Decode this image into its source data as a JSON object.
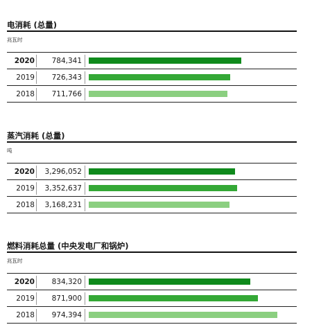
{
  "chart_data": [
    {
      "type": "bar",
      "title": "电消耗 (总量)",
      "unit": "兆瓦时",
      "categories": [
        "2020",
        "2019",
        "2018"
      ],
      "values": [
        784341,
        726343,
        711766
      ],
      "labels": [
        "784,341",
        "726,343",
        "711,766"
      ],
      "bar_colors": [
        "#0f8a1c",
        "#34a836",
        "#8bcf80"
      ],
      "xlim": [
        0,
        1070000
      ]
    },
    {
      "type": "bar",
      "title": "蒸汽消耗 (总量)",
      "unit": "吨",
      "categories": [
        "2020",
        "2019",
        "2018"
      ],
      "values": [
        3296052,
        3352637,
        3168231
      ],
      "labels": [
        "3,296,052",
        "3,352,637",
        "3,168,231"
      ],
      "bar_colors": [
        "#0f8a1c",
        "#34a836",
        "#8bcf80"
      ],
      "xlim": [
        0,
        4690000
      ]
    },
    {
      "type": "bar",
      "title": "燃料消耗总量 (中央发电厂和锅炉)",
      "unit": "兆瓦时",
      "categories": [
        "2020",
        "2019",
        "2018"
      ],
      "values": [
        834320,
        871900,
        974394
      ],
      "labels": [
        "834,320",
        "871,900",
        "974,394"
      ],
      "bar_colors": [
        "#0f8a1c",
        "#34a836",
        "#8bcf80"
      ],
      "xlim": [
        0,
        1074000
      ]
    }
  ]
}
